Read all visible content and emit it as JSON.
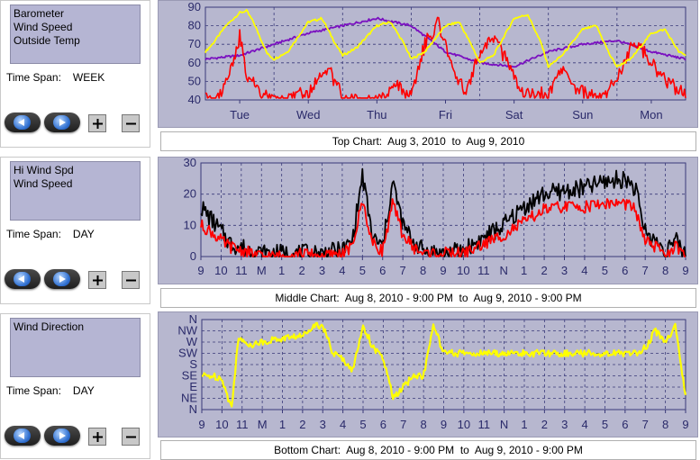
{
  "panels": [
    {
      "id": "top",
      "series_labels": [
        "Barometer",
        "Wind Speed",
        "Outside Temp"
      ],
      "timespan_label": "Time Span:",
      "timespan_value": "WEEK",
      "chart_title": "Top Chart:  Aug 3, 2010  to  Aug 9, 2010"
    },
    {
      "id": "middle",
      "series_labels": [
        "Hi Wind Spd",
        "Wind Speed"
      ],
      "timespan_label": "Time Span:",
      "timespan_value": "DAY",
      "chart_title": "Middle Chart:  Aug 8, 2010 - 9:00 PM  to  Aug 9, 2010 - 9:00 PM"
    },
    {
      "id": "bottom",
      "series_labels": [
        "Wind Direction"
      ],
      "timespan_label": "Time Span:",
      "timespan_value": "DAY",
      "chart_title": "Bottom Chart:  Aug 8, 2010 - 9:00 PM  to  Aug 9, 2010 - 9:00 PM"
    }
  ],
  "icons": {
    "prev": "left-arrow-icon",
    "next": "right-arrow-icon",
    "zoom_in": "plus-icon",
    "zoom_out": "minus-icon"
  },
  "colors": {
    "plot_background": "#b7b7cf",
    "grid": "#3a3a7a",
    "axis_text": "#2a2a6a",
    "red": "#ff0000",
    "black": "#000000",
    "yellow": "#ffff00",
    "purple": "#7a10c0"
  },
  "chart_data": [
    {
      "type": "line",
      "x_categories": [
        "Tue",
        "Wed",
        "Thu",
        "Fri",
        "Sat",
        "Sun",
        "Mon"
      ],
      "y_ticks": [
        "40",
        "50",
        "60",
        "70",
        "80",
        "90"
      ],
      "ylim": [
        40,
        90
      ],
      "grid": true,
      "series": [
        {
          "name": "Outside Temp",
          "color": "#ffff00",
          "x": [
            0,
            0.1,
            0.3,
            0.5,
            0.6,
            0.7,
            0.9,
            1.0,
            1.2,
            1.5,
            1.7,
            1.9,
            2.0,
            2.2,
            2.5,
            2.7,
            2.9,
            3.0,
            3.2,
            3.5,
            3.7,
            3.9,
            4.0,
            4.2,
            4.5,
            4.7,
            4.9,
            5.0,
            5.2,
            5.5,
            5.7,
            5.9,
            6.0,
            6.2,
            6.5,
            6.7,
            6.9,
            7.0
          ],
          "y": [
            66,
            70,
            80,
            87,
            88,
            82,
            65,
            62,
            66,
            82,
            84,
            70,
            64,
            68,
            80,
            82,
            70,
            62,
            66,
            80,
            82,
            68,
            60,
            64,
            84,
            86,
            70,
            58,
            64,
            78,
            80,
            64,
            58,
            62,
            76,
            78,
            66,
            64
          ]
        },
        {
          "name": "Barometer",
          "color": "#7a10c0",
          "x": [
            0,
            0.5,
            1.0,
            1.5,
            2.0,
            2.5,
            3.0,
            3.5,
            4.0,
            4.5,
            5.0,
            5.5,
            6.0,
            6.5,
            7.0
          ],
          "y": [
            62,
            64,
            70,
            76,
            80,
            84,
            80,
            66,
            60,
            58,
            66,
            70,
            72,
            66,
            62
          ]
        },
        {
          "name": "Wind Speed",
          "color": "#ff0000",
          "x": [
            0,
            0.2,
            0.4,
            0.5,
            0.6,
            0.8,
            1.0,
            1.3,
            1.5,
            1.8,
            2.0,
            2.3,
            2.5,
            2.8,
            3.0,
            3.2,
            3.4,
            3.6,
            3.8,
            4.0,
            4.2,
            4.4,
            4.6,
            4.8,
            5.0,
            5.2,
            5.4,
            5.6,
            5.8,
            6.0,
            6.2,
            6.4,
            6.6,
            6.8,
            7.0
          ],
          "y": [
            44,
            46,
            62,
            78,
            58,
            48,
            44,
            46,
            48,
            60,
            46,
            42,
            44,
            52,
            46,
            74,
            86,
            60,
            48,
            70,
            78,
            64,
            50,
            46,
            48,
            60,
            50,
            46,
            44,
            56,
            72,
            70,
            58,
            52,
            46
          ]
        }
      ]
    },
    {
      "type": "line",
      "x_categories": [
        "9",
        "10",
        "11",
        "M",
        "1",
        "2",
        "3",
        "4",
        "5",
        "6",
        "7",
        "8",
        "9",
        "10",
        "11",
        "N",
        "1",
        "2",
        "3",
        "4",
        "5",
        "6",
        "7",
        "8",
        "9"
      ],
      "y_ticks": [
        "0",
        "10",
        "20",
        "30"
      ],
      "ylim": [
        0,
        30
      ],
      "grid": true,
      "series": [
        {
          "name": "Hi Wind Spd",
          "color": "#000000",
          "x": [
            0,
            0.5,
            1.0,
            1.5,
            2.0,
            2.5,
            3,
            4,
            5,
            6,
            7,
            7.5,
            8,
            8.5,
            9,
            9.5,
            10,
            10.5,
            11,
            12,
            13,
            14,
            15,
            16,
            17,
            18,
            19,
            20,
            21,
            21.5,
            22,
            23,
            23.5,
            24
          ],
          "y": [
            16,
            12,
            8,
            4,
            3,
            2,
            1,
            1,
            1,
            1,
            2,
            5,
            26,
            6,
            3,
            24,
            10,
            5,
            2,
            1,
            2,
            6,
            10,
            16,
            20,
            21,
            22,
            24,
            25,
            22,
            8,
            2,
            5,
            1
          ]
        },
        {
          "name": "Wind Speed",
          "color": "#ff0000",
          "x": [
            0,
            0.5,
            1.0,
            1.5,
            2.0,
            2.5,
            3,
            4,
            5,
            6,
            7,
            7.5,
            8,
            8.5,
            9,
            9.5,
            10,
            10.5,
            11,
            12,
            13,
            14,
            15,
            16,
            17,
            18,
            19,
            20,
            21,
            21.5,
            22,
            23,
            23.5,
            24
          ],
          "y": [
            10,
            8,
            5,
            3,
            2,
            1,
            0,
            0,
            1,
            0,
            1,
            3,
            18,
            4,
            2,
            17,
            7,
            3,
            1,
            1,
            1,
            4,
            7,
            11,
            15,
            16,
            16,
            17,
            17,
            15,
            5,
            1,
            3,
            0
          ]
        }
      ]
    },
    {
      "type": "line",
      "x_categories": [
        "9",
        "10",
        "11",
        "M",
        "1",
        "2",
        "3",
        "4",
        "5",
        "6",
        "7",
        "8",
        "9",
        "10",
        "11",
        "N",
        "1",
        "2",
        "3",
        "4",
        "5",
        "6",
        "7",
        "8",
        "9"
      ],
      "y_ticks": [
        "N",
        "NE",
        "E",
        "SE",
        "S",
        "SW",
        "W",
        "NW",
        "N"
      ],
      "ylim": [
        0,
        8
      ],
      "grid": true,
      "series": [
        {
          "name": "Wind Direction",
          "color": "#ffff00",
          "x": [
            0,
            0.5,
            1.0,
            1.3,
            1.5,
            1.8,
            2.0,
            2.5,
            3.0,
            3.5,
            4.0,
            4.5,
            5.0,
            5.5,
            6.0,
            6.5,
            7.0,
            7.5,
            8.0,
            8.5,
            9.0,
            9.5,
            10.0,
            10.5,
            11.0,
            11.5,
            12.0,
            13.0,
            14.0,
            15.0,
            16.0,
            17.0,
            18.0,
            19.0,
            20.0,
            20.5,
            21.0,
            21.5,
            22.0,
            22.5,
            23.0,
            23.5,
            24.0
          ],
          "y": [
            3.0,
            3.0,
            2.8,
            1.0,
            0.2,
            6.5,
            6.0,
            5.8,
            6.0,
            6.2,
            6.3,
            6.5,
            6.5,
            7.5,
            7.5,
            5.0,
            4.5,
            3.5,
            7.5,
            5.5,
            4.5,
            1.0,
            2.0,
            3.0,
            3.0,
            7.5,
            5.0,
            5.0,
            5.0,
            5.0,
            5.0,
            5.0,
            5.0,
            5.0,
            5.0,
            5.0,
            5.0,
            5.0,
            5.5,
            7.0,
            6.0,
            7.5,
            1.0
          ]
        }
      ]
    }
  ]
}
